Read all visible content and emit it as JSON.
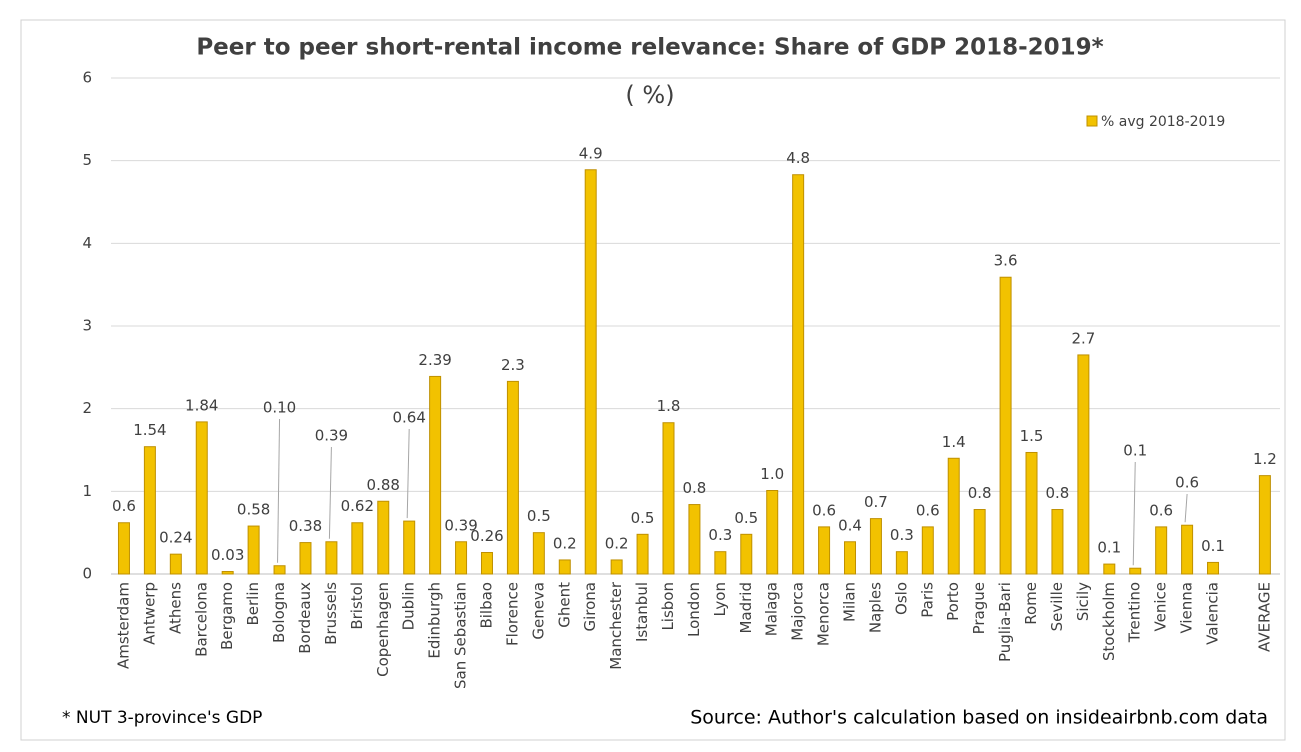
{
  "chart_data": {
    "type": "bar",
    "title": "Peer to peer short-rental income relevance: Share of  GDP 2018-2019*",
    "subtitle": "( %)",
    "categories": [
      "Amsterdam",
      "Antwerp",
      "Athens",
      "Barcelona",
      "Bergamo",
      "Berlin",
      "Bologna",
      "Bordeaux",
      "Brussels",
      "Bristol",
      "Copenhagen",
      "Dublin",
      "Edinburgh",
      "San Sebastian",
      "Bilbao",
      "Florence",
      "Geneva",
      "Ghent",
      "Girona",
      "Manchester",
      "Istanbul",
      "Lisbon",
      "London",
      "Lyon",
      "Madrid",
      "Malaga",
      "Majorca",
      "Menorca",
      "Milan",
      "Naples",
      "Oslo",
      "Paris",
      "Porto",
      "Prague",
      "Puglia-Bari",
      "Rome",
      "Seville",
      "Sicily",
      "Stockholm",
      "Trentino",
      "Venice",
      "Vienna",
      "Valencia",
      null,
      "AVERAGE"
    ],
    "series": [
      {
        "name": "% avg 2018-2019",
        "color": "#f2c200",
        "values": [
          0.62,
          1.54,
          0.24,
          1.84,
          0.03,
          0.58,
          0.1,
          0.38,
          0.39,
          0.62,
          0.88,
          0.64,
          2.39,
          0.39,
          0.26,
          2.33,
          0.5,
          0.17,
          4.89,
          0.17,
          0.48,
          1.83,
          0.84,
          0.27,
          0.48,
          1.01,
          4.83,
          0.57,
          0.39,
          0.67,
          0.27,
          0.57,
          1.4,
          0.78,
          3.59,
          1.47,
          0.78,
          2.65,
          0.12,
          0.07,
          0.57,
          0.59,
          0.14,
          null,
          1.19
        ],
        "value_labels": [
          "0.6",
          "1.54",
          "0.24",
          "1.84",
          "0.03",
          "0.58",
          "0.10",
          "0.38",
          "0.39",
          "0.62",
          "0.88",
          "0.64",
          "2.39",
          "0.39",
          "0.26",
          "2.3",
          "0.5",
          "0.2",
          "4.9",
          "0.2",
          "0.5",
          "1.8",
          "0.8",
          "0.3",
          "0.5",
          "1.0",
          "4.8",
          "0.6",
          "0.4",
          "0.7",
          "0.3",
          "0.6",
          "1.4",
          "0.8",
          "3.6",
          "1.5",
          "0.8",
          "2.7",
          "0.1",
          "0.1",
          "0.6",
          "0.6",
          "0.1",
          null,
          "1.2"
        ]
      }
    ],
    "ylim": [
      0,
      6
    ],
    "yticks": [
      0,
      1,
      2,
      3,
      4,
      5,
      6
    ],
    "grid": true,
    "legend": "upper right",
    "footnote": "* NUT 3-province's GDP",
    "source": "Source: Author's calculation based on insideairbnb.com data"
  }
}
